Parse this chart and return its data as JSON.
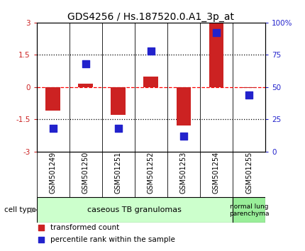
{
  "title": "GDS4256 / Hs.187520.0.A1_3p_at",
  "samples": [
    "GSM501249",
    "GSM501250",
    "GSM501251",
    "GSM501252",
    "GSM501253",
    "GSM501254",
    "GSM501255"
  ],
  "transformed_counts": [
    -1.1,
    0.15,
    -1.3,
    0.5,
    -1.8,
    2.95,
    -0.05
  ],
  "percentile_ranks": [
    18,
    68,
    18,
    78,
    12,
    92,
    44
  ],
  "ylim_left": [
    -3,
    3
  ],
  "ylim_right": [
    0,
    100
  ],
  "yticks_left": [
    -3,
    -1.5,
    0,
    1.5,
    3
  ],
  "yticks_right": [
    0,
    25,
    50,
    75,
    100
  ],
  "ytick_labels_left": [
    "-3",
    "-1.5",
    "0",
    "1.5",
    "3"
  ],
  "ytick_labels_right": [
    "0",
    "25",
    "50",
    "75",
    "100%"
  ],
  "bar_color": "#CC2222",
  "dot_color": "#2222CC",
  "bar_width": 0.45,
  "dot_size": 50,
  "cell_type_bg1": "#CCFFCC",
  "cell_type_bg2": "#99EE99",
  "tick_area_bg": "#CCCCCC",
  "background_color": "#FFFFFF",
  "title_fontsize": 10,
  "tick_fontsize": 7.5,
  "sample_fontsize": 7,
  "legend_fontsize": 7.5,
  "cell_label_fontsize": 8
}
